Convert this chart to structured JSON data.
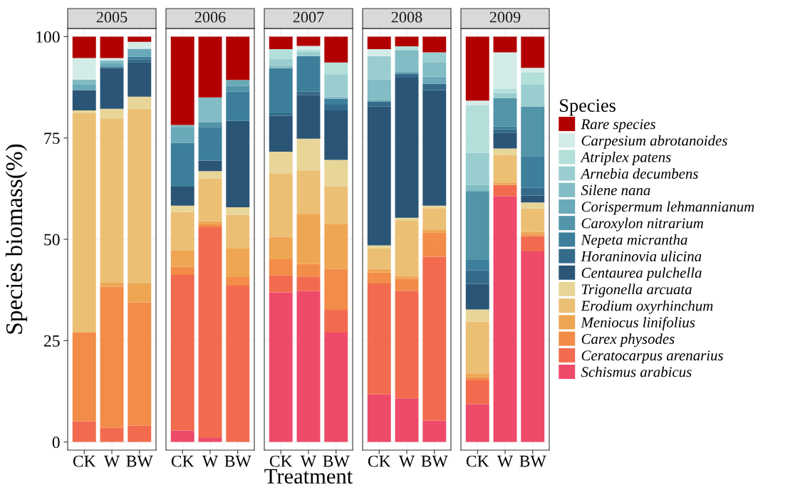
{
  "chart_data": [
    {
      "type": "bar",
      "title": "2005",
      "stacked": true,
      "categories": [
        "CK",
        "W",
        "BW"
      ],
      "ylabel": "Species biomass(%)",
      "ylim": [
        -2,
        102
      ],
      "yticks": [
        0,
        25,
        50,
        75,
        100
      ],
      "grid": true,
      "series": [
        {
          "color": "#ee4a6a",
          "values": [
            0,
            0,
            0
          ]
        },
        {
          "color": "#f26b4f",
          "values": [
            5.1,
            3.5,
            4.0
          ]
        },
        {
          "color": "#f28c48",
          "values": [
            21.9,
            34.8,
            30.4
          ]
        },
        {
          "color": "#eea653",
          "values": [
            0,
            1.0,
            4.7
          ]
        },
        {
          "color": "#ebbf74",
          "values": [
            54.1,
            40.4,
            43.1
          ]
        },
        {
          "color": "#e8d598",
          "values": [
            0.7,
            2.5,
            3.0
          ]
        },
        {
          "color": "#2a5576",
          "values": [
            5.0,
            10.1,
            8.5
          ]
        },
        {
          "color": "#346a8a",
          "values": [
            0,
            0,
            0.7
          ]
        },
        {
          "color": "#3d7f9a",
          "values": [
            0,
            0,
            0.6
          ]
        },
        {
          "color": "#5294a8",
          "values": [
            0,
            0.5,
            0
          ]
        },
        {
          "color": "#6aa9b8",
          "values": [
            1.3,
            0.6,
            2.0
          ]
        },
        {
          "color": "#82bcc4",
          "values": [
            1.3,
            0.7,
            0
          ]
        },
        {
          "color": "#99cdd0",
          "values": [
            0,
            0,
            0
          ]
        },
        {
          "color": "#b3dfdb",
          "values": [
            0,
            0,
            0
          ]
        },
        {
          "color": "#d4ece8",
          "values": [
            5.3,
            0.6,
            1.7
          ]
        },
        {
          "color": "#b20000",
          "values": [
            5.3,
            5.3,
            1.3
          ]
        }
      ]
    },
    {
      "type": "bar",
      "title": "2006",
      "stacked": true,
      "categories": [
        "CK",
        "W",
        "BW"
      ],
      "ylim": [
        -2,
        102
      ],
      "yticks": [
        0,
        25,
        50,
        75,
        100
      ],
      "grid": true,
      "tick_labels": "x",
      "series": [
        {
          "color": "#ee4a6a",
          "values": [
            2.8,
            1.0,
            0
          ]
        },
        {
          "color": "#f26b4f",
          "values": [
            38.4,
            52.0,
            38.6
          ]
        },
        {
          "color": "#f28c48",
          "values": [
            2.0,
            0.8,
            2.1
          ]
        },
        {
          "color": "#eea653",
          "values": [
            4.1,
            0.7,
            7.0
          ]
        },
        {
          "color": "#ebbf74",
          "values": [
            9.4,
            10.5,
            8.3
          ]
        },
        {
          "color": "#e8d598",
          "values": [
            1.6,
            1.8,
            1.9
          ]
        },
        {
          "color": "#2a5576",
          "values": [
            4.7,
            2.6,
            21.3
          ]
        },
        {
          "color": "#346a8a",
          "values": [
            0,
            0,
            0
          ]
        },
        {
          "color": "#3d7f9a",
          "values": [
            10.8,
            8.3,
            7.2
          ]
        },
        {
          "color": "#5294a8",
          "values": [
            0,
            1.1,
            1.4
          ]
        },
        {
          "color": "#6aa9b8",
          "values": [
            3.8,
            0,
            1.5
          ]
        },
        {
          "color": "#82bcc4",
          "values": [
            0.6,
            6.2,
            0
          ]
        },
        {
          "color": "#99cdd0",
          "values": [
            0,
            0,
            0
          ]
        },
        {
          "color": "#b3dfdb",
          "values": [
            0,
            0,
            0
          ]
        },
        {
          "color": "#d4ece8",
          "values": [
            0,
            0,
            0
          ]
        },
        {
          "color": "#b20000",
          "values": [
            21.8,
            15.0,
            10.7
          ]
        }
      ]
    },
    {
      "type": "bar",
      "title": "2007",
      "stacked": true,
      "categories": [
        "CK",
        "W",
        "BW"
      ],
      "xlabel": "Treatment",
      "ylim": [
        -2,
        102
      ],
      "yticks": [
        0,
        25,
        50,
        75,
        100
      ],
      "grid": true,
      "tick_labels": "x",
      "series": [
        {
          "color": "#ee4a6a",
          "values": [
            36.9,
            37.2,
            27.0
          ]
        },
        {
          "color": "#f26b4f",
          "values": [
            4.2,
            3.6,
            5.6
          ]
        },
        {
          "color": "#f28c48",
          "values": [
            4.0,
            3.1,
            10.1
          ]
        },
        {
          "color": "#eea653",
          "values": [
            5.5,
            12.4,
            11.0
          ]
        },
        {
          "color": "#ebbf74",
          "values": [
            15.7,
            10.7,
            9.3
          ]
        },
        {
          "color": "#e8d598",
          "values": [
            5.3,
            7.8,
            6.6
          ]
        },
        {
          "color": "#2a5576",
          "values": [
            8.9,
            10.8,
            12.2
          ]
        },
        {
          "color": "#346a8a",
          "values": [
            0.6,
            0.8,
            1.4
          ]
        },
        {
          "color": "#3d7f9a",
          "values": [
            11.1,
            8.8,
            1.4
          ]
        },
        {
          "color": "#5294a8",
          "values": [
            0,
            0,
            0
          ]
        },
        {
          "color": "#6aa9b8",
          "values": [
            0,
            0,
            0
          ]
        },
        {
          "color": "#82bcc4",
          "values": [
            0.6,
            0,
            0.6
          ]
        },
        {
          "color": "#99cdd0",
          "values": [
            1.7,
            1.0,
            5.5
          ]
        },
        {
          "color": "#b3dfdb",
          "values": [
            2.4,
            0.6,
            2.9
          ]
        },
        {
          "color": "#d4ece8",
          "values": [
            0,
            0.9,
            0
          ]
        },
        {
          "color": "#b20000",
          "values": [
            3.1,
            2.3,
            6.4
          ]
        }
      ]
    },
    {
      "type": "bar",
      "title": "2008",
      "stacked": true,
      "categories": [
        "CK",
        "W",
        "BW"
      ],
      "ylim": [
        -2,
        102
      ],
      "yticks": [
        0,
        25,
        50,
        75,
        100
      ],
      "grid": true,
      "tick_labels": "x",
      "series": [
        {
          "color": "#ee4a6a",
          "values": [
            11.8,
            10.8,
            5.3
          ]
        },
        {
          "color": "#f26b4f",
          "values": [
            27.3,
            26.5,
            40.4
          ]
        },
        {
          "color": "#f28c48",
          "values": [
            2.7,
            3.0,
            6.0
          ]
        },
        {
          "color": "#eea653",
          "values": [
            0.9,
            0.7,
            0.6
          ]
        },
        {
          "color": "#ebbf74",
          "values": [
            5.0,
            13.7,
            5.4
          ]
        },
        {
          "color": "#e8d598",
          "values": [
            0.8,
            0.6,
            0.6
          ]
        },
        {
          "color": "#2a5576",
          "values": [
            34.2,
            34.6,
            28.5
          ]
        },
        {
          "color": "#346a8a",
          "values": [
            1.2,
            1.0,
            1.6
          ]
        },
        {
          "color": "#3d7f9a",
          "values": [
            0,
            0,
            0
          ]
        },
        {
          "color": "#5294a8",
          "values": [
            0,
            0,
            0
          ]
        },
        {
          "color": "#6aa9b8",
          "values": [
            0.5,
            0.5,
            1.7
          ]
        },
        {
          "color": "#82bcc4",
          "values": [
            5.0,
            5.3,
            3.6
          ]
        },
        {
          "color": "#99cdd0",
          "values": [
            5.8,
            0,
            2.4
          ]
        },
        {
          "color": "#b3dfdb",
          "values": [
            0,
            0.9,
            0
          ]
        },
        {
          "color": "#d4ece8",
          "values": [
            1.7,
            0,
            0
          ]
        },
        {
          "color": "#b20000",
          "values": [
            3.1,
            2.4,
            3.9
          ]
        }
      ]
    },
    {
      "type": "bar",
      "title": "2009",
      "stacked": true,
      "categories": [
        "CK",
        "W",
        "BW"
      ],
      "ylim": [
        -2,
        102
      ],
      "yticks": [
        0,
        25,
        50,
        75,
        100
      ],
      "grid": true,
      "tick_labels": "x",
      "legend": "right",
      "legend_title": "Species",
      "series": [
        {
          "name": "Schismus arabicus",
          "color": "#ee4a6a",
          "values": [
            9.3,
            60.6,
            47.0
          ]
        },
        {
          "name": "Ceratocarpus arenarius",
          "color": "#f26b4f",
          "values": [
            5.9,
            2.8,
            3.8
          ]
        },
        {
          "name": "Carex physodes",
          "color": "#f28c48",
          "values": [
            0.8,
            0,
            0.4
          ]
        },
        {
          "name": "Meniocus linifolius",
          "color": "#eea653",
          "values": [
            0.8,
            0.6,
            0.6
          ]
        },
        {
          "name": "Erodium oxyrhinchum",
          "color": "#ebbf74",
          "values": [
            12.9,
            6.8,
            5.8
          ]
        },
        {
          "name": "Trigonella arcuata",
          "color": "#e8d598",
          "values": [
            3.0,
            1.6,
            1.5
          ]
        },
        {
          "name": "Centaurea pulchella",
          "color": "#2a5576",
          "values": [
            6.3,
            3.9,
            1.7
          ]
        },
        {
          "name": "Horaninovia ulicina",
          "color": "#346a8a",
          "values": [
            3.3,
            0.8,
            1.9
          ]
        },
        {
          "name": "Nepeta micrantha",
          "color": "#3d7f9a",
          "values": [
            2.6,
            0.7,
            7.8
          ]
        },
        {
          "name": "Caroxylon nitrarium",
          "color": "#5294a8",
          "values": [
            17.0,
            7.0,
            12.2
          ]
        },
        {
          "name": "Corispermum lehmannianum",
          "color": "#6aa9b8",
          "values": [
            0,
            0,
            0
          ]
        },
        {
          "name": "Silene nana",
          "color": "#82bcc4",
          "values": [
            1.5,
            0,
            0
          ]
        },
        {
          "name": "Arnebia decumbens",
          "color": "#99cdd0",
          "values": [
            7.9,
            1.3,
            5.4
          ]
        },
        {
          "name": "Atriplex patens",
          "color": "#b3dfdb",
          "values": [
            11.8,
            1.1,
            3.1
          ]
        },
        {
          "name": "Carpesium abrotanoides",
          "color": "#d4ece8",
          "values": [
            1.1,
            8.9,
            1.1
          ]
        },
        {
          "name": "Rare species",
          "color": "#b20000",
          "values": [
            15.8,
            3.9,
            7.7
          ]
        }
      ]
    }
  ]
}
